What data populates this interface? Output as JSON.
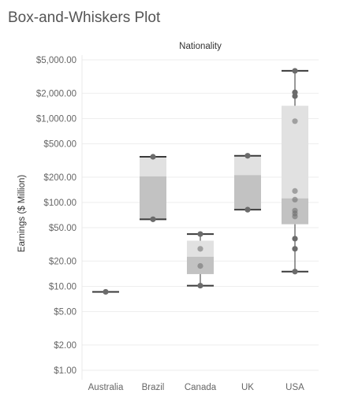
{
  "title": "Box-and-Whiskers Plot",
  "chart_data": {
    "type": "box",
    "title": "Box-and-Whiskers Plot",
    "header": "Nationality",
    "ylabel": "Earnings ($ Million)",
    "xlabel": "",
    "yscale": "log",
    "ylim": [
      0.85,
      6500
    ],
    "ticks": [
      {
        "value": 1,
        "label": "$1.00"
      },
      {
        "value": 2,
        "label": "$2.00"
      },
      {
        "value": 5,
        "label": "$5.00"
      },
      {
        "value": 10,
        "label": "$10.00"
      },
      {
        "value": 20,
        "label": "$20.00"
      },
      {
        "value": 50,
        "label": "$50.00"
      },
      {
        "value": 100,
        "label": "$100.00"
      },
      {
        "value": 200,
        "label": "$200.00"
      },
      {
        "value": 500,
        "label": "$500.00"
      },
      {
        "value": 1000,
        "label": "$1,000.00"
      },
      {
        "value": 2000,
        "label": "$2,000.00"
      },
      {
        "value": 5000,
        "label": "$5,000.00"
      }
    ],
    "categories": [
      "Australia",
      "Brazil",
      "Canada",
      "UK",
      "USA"
    ],
    "boxes": [
      {
        "category": "Australia",
        "min": 8.6,
        "q1": 8.6,
        "median": 8.6,
        "q3": 8.6,
        "max": 8.6,
        "points": [
          8.6
        ]
      },
      {
        "category": "Brazil",
        "min": 63,
        "q1": 64,
        "median": 205,
        "q3": 345,
        "max": 350,
        "points": [
          63,
          350
        ]
      },
      {
        "category": "Canada",
        "min": 10.2,
        "q1": 14,
        "median": 22.5,
        "q3": 35,
        "max": 42,
        "points": [
          10.2,
          17.5,
          28,
          42
        ]
      },
      {
        "category": "UK",
        "min": 82,
        "q1": 84,
        "median": 212,
        "q3": 355,
        "max": 360,
        "points": [
          82,
          360
        ]
      },
      {
        "category": "USA",
        "min": 15,
        "q1": 55,
        "median": 112,
        "q3": 1420,
        "max": 3700,
        "points": [
          15,
          28,
          37,
          68,
          74,
          80,
          108,
          137,
          930,
          1850,
          2050,
          3700
        ]
      }
    ],
    "colors": {
      "box_upper": "#e1e1e1",
      "box_lower": "#c2c2c2",
      "whisker": "#555555",
      "point": "#6b6b6b",
      "gridline": "#eeeeee",
      "text": "#666666"
    },
    "grid": true
  }
}
